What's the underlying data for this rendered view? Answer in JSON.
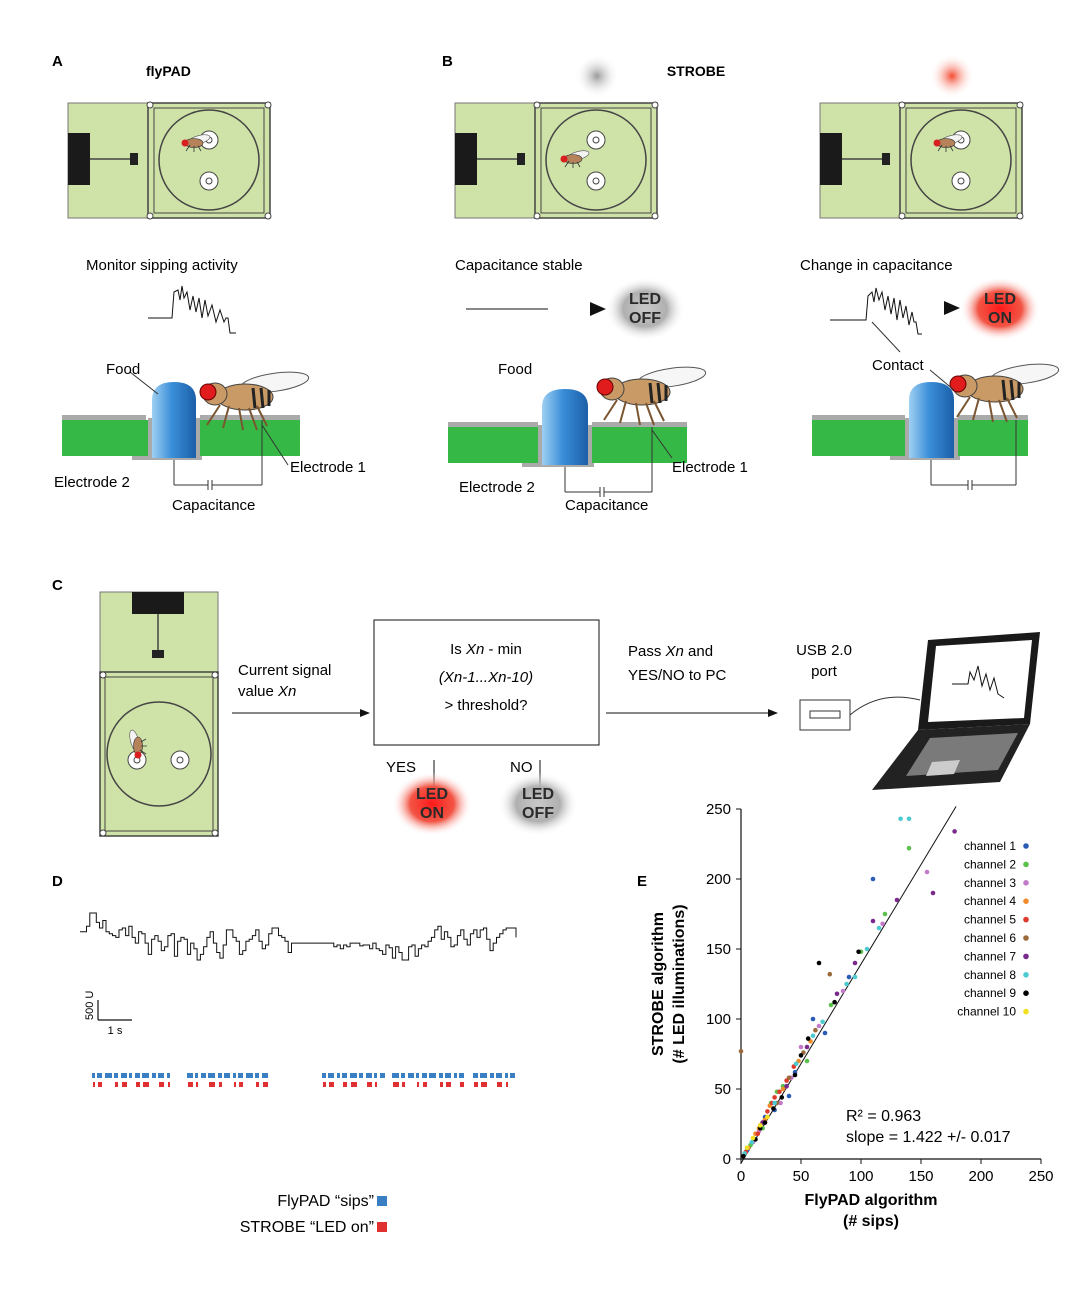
{
  "panels": {
    "A": {
      "letter": "A",
      "title": "flyPAD",
      "monitor_label": "Monitor sipping activity",
      "food_label": "Food",
      "electrode1": "Electrode 1",
      "electrode2": "Electrode 2",
      "capacitance": "Capacitance"
    },
    "B": {
      "letter": "B",
      "title": "STROBE",
      "stable_label": "Capacitance stable",
      "change_label": "Change in capacitance",
      "food_label": "Food",
      "contact_label": "Contact",
      "electrode1": "Electrode 1",
      "electrode2": "Electrode 2",
      "capacitance": "Capacitance",
      "led_off": [
        "LED",
        "OFF"
      ],
      "led_on": [
        "LED",
        "ON"
      ]
    },
    "C": {
      "letter": "C",
      "signal_label": [
        "Current signal",
        "value "
      ],
      "signal_var": "Xn",
      "box_line1_pre": "Is ",
      "box_line1_var": "Xn",
      "box_line1_post": " - min",
      "box_line2": "(Xn-1...Xn-10)",
      "box_line3": "> threshold?",
      "pass_line1_pre": "Pass ",
      "pass_line1_var": "Xn",
      "pass_line1_post": " and",
      "pass_line2": "YES/NO to PC",
      "usb_label": [
        "USB 2.0",
        "port"
      ],
      "yes": "YES",
      "no": "NO",
      "led_on": [
        "LED",
        "ON"
      ],
      "led_off": [
        "LED",
        "OFF"
      ]
    },
    "D": {
      "letter": "D",
      "scale_y": "500 U",
      "scale_x": "1 s",
      "legend_sips": "FlyPAD “sips”",
      "legend_led": "STROBE “LED on”"
    },
    "E": {
      "letter": "E"
    }
  },
  "colors": {
    "board": "#cfe2a8",
    "pcb": "#3cc04a",
    "food": "#3a8ed8",
    "led_red": "#e8251f",
    "led_gray": "#9a9a9a",
    "sips_blue": "#3a7fc4",
    "led_on_red": "#e03030"
  },
  "chart_data": {
    "type": "scatter",
    "xlabel": "FlyPAD algorithm\n(# sips)",
    "ylabel": "STROBE algorithm\n(# LED illuminations)",
    "xlim": [
      0,
      250
    ],
    "ylim": [
      0,
      250
    ],
    "xticks": [
      0,
      50,
      100,
      150,
      200,
      250
    ],
    "yticks": [
      0,
      50,
      100,
      150,
      200,
      250
    ],
    "legend_position": "right",
    "annotations": {
      "r2": "R² = 0.963",
      "slope": "slope = 1.422 +/- 0.017"
    },
    "fit_line": {
      "slope": 1.422,
      "intercept": -3
    },
    "series": [
      {
        "name": "channel 1",
        "color": "#2a5bb5",
        "points": [
          [
            5,
            6
          ],
          [
            12,
            14
          ],
          [
            20,
            30
          ],
          [
            45,
            62
          ],
          [
            60,
            100
          ],
          [
            110,
            200
          ],
          [
            40,
            45
          ],
          [
            28,
            35
          ],
          [
            70,
            90
          ],
          [
            90,
            130
          ]
        ]
      },
      {
        "name": "channel 2",
        "color": "#5cc04c",
        "points": [
          [
            8,
            10
          ],
          [
            25,
            40
          ],
          [
            30,
            48
          ],
          [
            55,
            70
          ],
          [
            75,
            110
          ],
          [
            140,
            222
          ],
          [
            35,
            52
          ],
          [
            18,
            22
          ],
          [
            100,
            148
          ],
          [
            120,
            175
          ]
        ]
      },
      {
        "name": "channel 3",
        "color": "#c27ac9",
        "points": [
          [
            10,
            12
          ],
          [
            22,
            30
          ],
          [
            42,
            58
          ],
          [
            50,
            80
          ],
          [
            85,
            120
          ],
          [
            155,
            205
          ],
          [
            33,
            40
          ],
          [
            65,
            95
          ],
          [
            15,
            20
          ],
          [
            118,
            168
          ]
        ]
      },
      {
        "name": "channel 4",
        "color": "#f08c2c",
        "points": [
          [
            6,
            8
          ],
          [
            15,
            22
          ],
          [
            24,
            38
          ],
          [
            35,
            50
          ],
          [
            48,
            70
          ],
          [
            20,
            28
          ],
          [
            58,
            84
          ],
          [
            12,
            18
          ]
        ]
      },
      {
        "name": "channel 5",
        "color": "#e03a2e",
        "points": [
          [
            4,
            5
          ],
          [
            14,
            18
          ],
          [
            26,
            40
          ],
          [
            32,
            48
          ],
          [
            44,
            66
          ],
          [
            18,
            26
          ],
          [
            28,
            44
          ],
          [
            38,
            56
          ],
          [
            22,
            34
          ]
        ]
      },
      {
        "name": "channel 6",
        "color": "#9a6a3a",
        "points": [
          [
            16,
            24
          ],
          [
            30,
            40
          ],
          [
            52,
            76
          ],
          [
            74,
            132
          ],
          [
            40,
            58
          ],
          [
            62,
            92
          ],
          [
            0,
            77
          ]
        ]
      },
      {
        "name": "channel 7",
        "color": "#7a2a8c",
        "points": [
          [
            18,
            26
          ],
          [
            38,
            52
          ],
          [
            55,
            80
          ],
          [
            80,
            118
          ],
          [
            95,
            140
          ],
          [
            130,
            185
          ],
          [
            178,
            234
          ],
          [
            110,
            170
          ],
          [
            160,
            190
          ]
        ]
      },
      {
        "name": "channel 8",
        "color": "#4ccad0",
        "points": [
          [
            3,
            4
          ],
          [
            9,
            12
          ],
          [
            28,
            40
          ],
          [
            46,
            68
          ],
          [
            68,
            98
          ],
          [
            95,
            130
          ],
          [
            133,
            243
          ],
          [
            140,
            243
          ],
          [
            115,
            165
          ],
          [
            105,
            150
          ],
          [
            88,
            125
          ],
          [
            60,
            88
          ]
        ]
      },
      {
        "name": "channel 9",
        "color": "#000000",
        "points": [
          [
            2,
            2
          ],
          [
            12,
            14
          ],
          [
            20,
            26
          ],
          [
            34,
            44
          ],
          [
            50,
            74
          ],
          [
            65,
            140
          ],
          [
            78,
            112
          ],
          [
            98,
            148
          ],
          [
            27,
            36
          ],
          [
            45,
            60
          ],
          [
            16,
            22
          ],
          [
            56,
            86
          ]
        ]
      },
      {
        "name": "channel 10",
        "color": "#f0e020",
        "points": [
          [
            5,
            8
          ],
          [
            10,
            15
          ],
          [
            16,
            24
          ],
          [
            22,
            30
          ]
        ]
      }
    ]
  },
  "trace_data": {
    "description_units": "raw capacitance signal",
    "y": [
      180,
      180,
      210,
      280,
      280,
      230,
      200,
      240,
      180,
      170,
      160,
      150,
      190,
      200,
      160,
      210,
      150,
      120,
      180,
      170,
      120,
      60,
      140,
      160,
      130,
      80,
      100,
      160,
      170,
      50,
      130,
      150,
      140,
      60,
      120,
      90,
      30,
      60,
      100,
      150,
      180,
      120,
      70,
      40,
      110,
      190,
      190,
      150,
      130,
      60,
      80,
      130,
      140,
      160,
      190,
      130,
      90,
      110,
      170,
      200,
      200,
      160,
      150,
      130,
      70,
      120,
      120,
      120,
      120,
      120,
      120,
      120,
      120,
      120,
      120,
      120,
      120,
      120,
      100,
      110,
      90,
      110,
      100,
      120,
      120,
      120,
      105,
      110,
      110,
      90,
      120,
      90,
      80,
      60,
      110,
      95,
      40,
      100,
      70,
      30,
      30,
      100,
      110,
      50,
      90,
      110,
      100,
      130,
      150,
      190,
      210,
      140,
      180,
      150,
      100,
      110,
      160,
      190,
      140,
      110,
      170,
      190,
      150,
      190,
      200,
      140,
      80,
      120,
      150,
      170,
      190,
      200,
      200,
      200,
      150
    ]
  }
}
